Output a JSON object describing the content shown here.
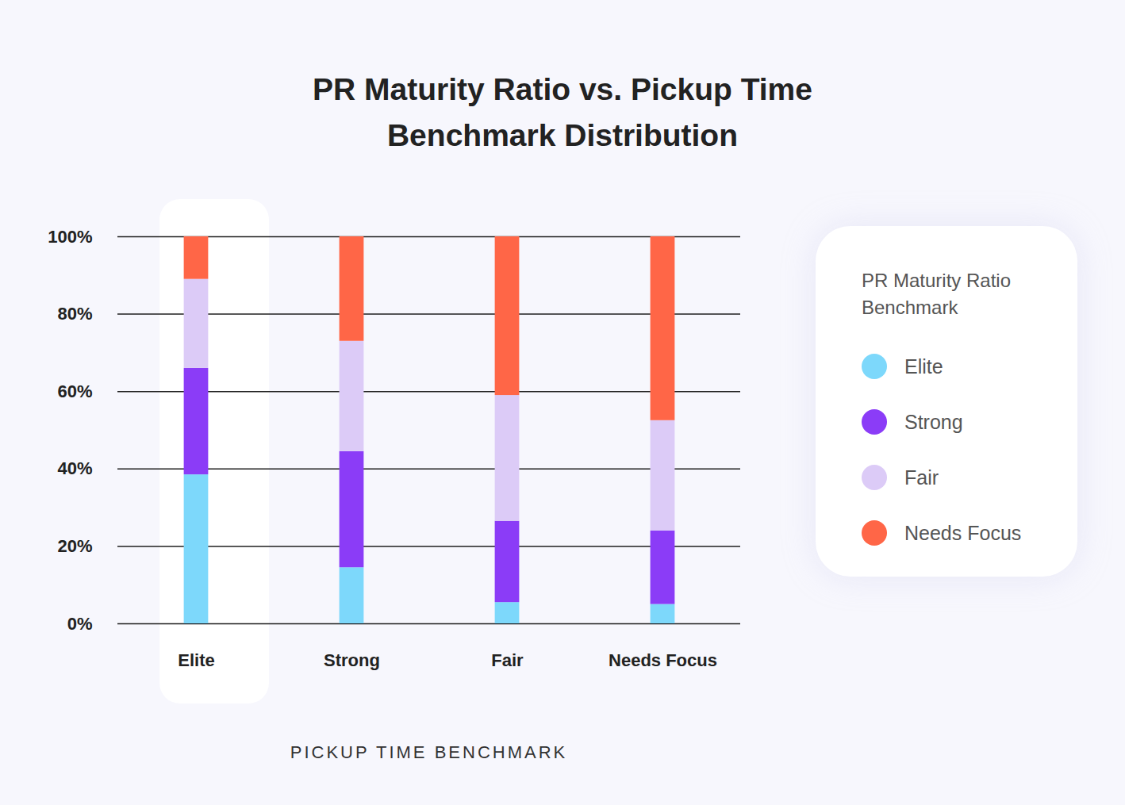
{
  "chart_data": {
    "type": "bar",
    "stacked": true,
    "title": "PR Maturity Ratio vs. Pickup Time Benchmark Distribution",
    "x_label": "PICKUP TIME BENCHMARK",
    "legend_title": "PR Maturity Ratio Benchmark",
    "legend": "right",
    "grid": true,
    "categories": [
      "Elite",
      "Strong",
      "Fair",
      "Needs Focus"
    ],
    "series": [
      {
        "name": "Elite",
        "color": "#7dd8fb",
        "values": [
          38.5,
          14.5,
          5.5,
          5
        ]
      },
      {
        "name": "Strong",
        "color": "#8b3cf7",
        "values": [
          27.5,
          30,
          21,
          19
        ]
      },
      {
        "name": "Fair",
        "color": "#dccbf7",
        "values": [
          23,
          28.5,
          32.5,
          28.5
        ]
      },
      {
        "name": "Needs Focus",
        "color": "#ff6647",
        "values": [
          11,
          27,
          41,
          47.5
        ]
      }
    ],
    "ylim": [
      0,
      100
    ],
    "yticks": [
      {
        "value": 0,
        "label": "0%"
      },
      {
        "value": 20,
        "label": "20%"
      },
      {
        "value": 40,
        "label": "40%"
      },
      {
        "value": 60,
        "label": "60%"
      },
      {
        "value": 80,
        "label": "80%"
      },
      {
        "value": 100,
        "label": "100%"
      }
    ]
  }
}
